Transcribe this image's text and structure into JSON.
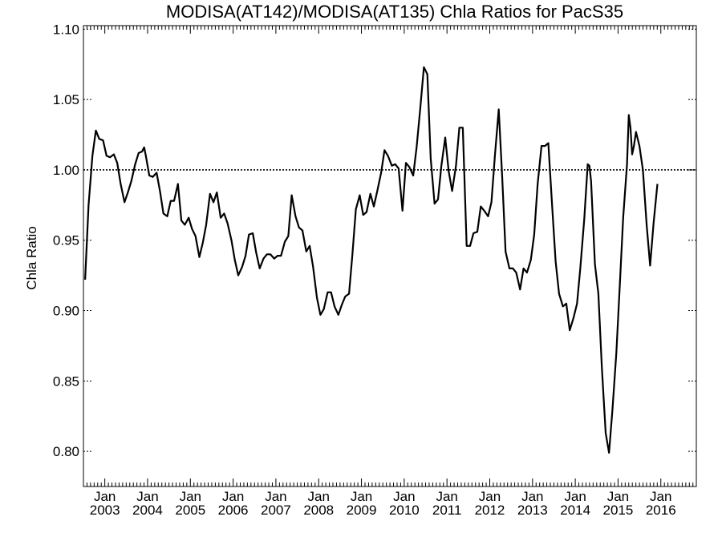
{
  "chart_data": {
    "type": "line",
    "title": "MODISA(AT142)/MODISA(AT135)  Chla Ratios for PacS35",
    "ylabel": "Chla Ratio",
    "xlabel": "",
    "ylim": [
      0.775,
      1.1025
    ],
    "xlim": [
      2002.5,
      2016.83
    ],
    "yticks": [
      0.8,
      0.85,
      0.9,
      0.95,
      1.0,
      1.05,
      1.1
    ],
    "ytick_labels": [
      "0.80",
      "0.85",
      "0.90",
      "0.95",
      "1.00",
      "1.05",
      "1.10"
    ],
    "xticks": [
      {
        "x": 2003.0,
        "month": "Jan",
        "year": "2003"
      },
      {
        "x": 2004.0,
        "month": "Jan",
        "year": "2004"
      },
      {
        "x": 2005.0,
        "month": "Jan",
        "year": "2005"
      },
      {
        "x": 2006.0,
        "month": "Jan",
        "year": "2006"
      },
      {
        "x": 2007.0,
        "month": "Jan",
        "year": "2007"
      },
      {
        "x": 2008.0,
        "month": "Jan",
        "year": "2008"
      },
      {
        "x": 2009.0,
        "month": "Jan",
        "year": "2009"
      },
      {
        "x": 2010.0,
        "month": "Jan",
        "year": "2010"
      },
      {
        "x": 2011.0,
        "month": "Jan",
        "year": "2011"
      },
      {
        "x": 2012.0,
        "month": "Jan",
        "year": "2012"
      },
      {
        "x": 2013.0,
        "month": "Jan",
        "year": "2013"
      },
      {
        "x": 2014.0,
        "month": "Jan",
        "year": "2014"
      },
      {
        "x": 2015.0,
        "month": "Jan",
        "year": "2015"
      },
      {
        "x": 2016.0,
        "month": "Jan",
        "year": "2016"
      }
    ],
    "reference_line": {
      "y": 1.0,
      "style": "dotted"
    },
    "grid": false,
    "legend": "none",
    "series": [
      {
        "values": [
          [
            2002.54,
            0.922
          ],
          [
            2002.62,
            0.975
          ],
          [
            2002.71,
            1.01
          ],
          [
            2002.79,
            1.028
          ],
          [
            2002.87,
            1.022
          ],
          [
            2002.96,
            1.021
          ],
          [
            2003.04,
            1.01
          ],
          [
            2003.12,
            1.009
          ],
          [
            2003.21,
            1.011
          ],
          [
            2003.29,
            1.005
          ],
          [
            2003.37,
            0.99
          ],
          [
            2003.46,
            0.977
          ],
          [
            2003.54,
            0.984
          ],
          [
            2003.62,
            0.992
          ],
          [
            2003.71,
            1.004
          ],
          [
            2003.79,
            1.012
          ],
          [
            2003.87,
            1.013
          ],
          [
            2003.92,
            1.016
          ],
          [
            2003.96,
            1.01
          ],
          [
            2004.04,
            0.996
          ],
          [
            2004.12,
            0.995
          ],
          [
            2004.21,
            0.998
          ],
          [
            2004.29,
            0.985
          ],
          [
            2004.37,
            0.969
          ],
          [
            2004.46,
            0.967
          ],
          [
            2004.54,
            0.978
          ],
          [
            2004.62,
            0.978
          ],
          [
            2004.71,
            0.99
          ],
          [
            2004.79,
            0.964
          ],
          [
            2004.87,
            0.961
          ],
          [
            2004.96,
            0.966
          ],
          [
            2005.04,
            0.958
          ],
          [
            2005.12,
            0.953
          ],
          [
            2005.21,
            0.938
          ],
          [
            2005.29,
            0.948
          ],
          [
            2005.37,
            0.961
          ],
          [
            2005.46,
            0.983
          ],
          [
            2005.54,
            0.977
          ],
          [
            2005.62,
            0.984
          ],
          [
            2005.71,
            0.966
          ],
          [
            2005.79,
            0.969
          ],
          [
            2005.87,
            0.962
          ],
          [
            2005.96,
            0.95
          ],
          [
            2006.04,
            0.936
          ],
          [
            2006.12,
            0.925
          ],
          [
            2006.21,
            0.931
          ],
          [
            2006.29,
            0.939
          ],
          [
            2006.37,
            0.954
          ],
          [
            2006.46,
            0.955
          ],
          [
            2006.54,
            0.941
          ],
          [
            2006.62,
            0.93
          ],
          [
            2006.71,
            0.937
          ],
          [
            2006.79,
            0.94
          ],
          [
            2006.87,
            0.94
          ],
          [
            2006.96,
            0.937
          ],
          [
            2007.04,
            0.939
          ],
          [
            2007.12,
            0.939
          ],
          [
            2007.21,
            0.949
          ],
          [
            2007.29,
            0.953
          ],
          [
            2007.37,
            0.982
          ],
          [
            2007.46,
            0.967
          ],
          [
            2007.54,
            0.959
          ],
          [
            2007.62,
            0.957
          ],
          [
            2007.71,
            0.942
          ],
          [
            2007.79,
            0.946
          ],
          [
            2007.87,
            0.931
          ],
          [
            2007.96,
            0.909
          ],
          [
            2008.04,
            0.897
          ],
          [
            2008.12,
            0.901
          ],
          [
            2008.21,
            0.913
          ],
          [
            2008.29,
            0.913
          ],
          [
            2008.37,
            0.903
          ],
          [
            2008.46,
            0.897
          ],
          [
            2008.54,
            0.904
          ],
          [
            2008.62,
            0.91
          ],
          [
            2008.71,
            0.912
          ],
          [
            2008.79,
            0.94
          ],
          [
            2008.87,
            0.972
          ],
          [
            2008.96,
            0.982
          ],
          [
            2009.04,
            0.968
          ],
          [
            2009.12,
            0.97
          ],
          [
            2009.21,
            0.983
          ],
          [
            2009.29,
            0.974
          ],
          [
            2009.37,
            0.985
          ],
          [
            2009.46,
            0.998
          ],
          [
            2009.54,
            1.014
          ],
          [
            2009.62,
            1.01
          ],
          [
            2009.71,
            1.003
          ],
          [
            2009.79,
            1.004
          ],
          [
            2009.87,
            1.001
          ],
          [
            2009.96,
            0.971
          ],
          [
            2010.04,
            1.005
          ],
          [
            2010.12,
            1.002
          ],
          [
            2010.21,
            0.996
          ],
          [
            2010.29,
            1.016
          ],
          [
            2010.37,
            1.042
          ],
          [
            2010.46,
            1.073
          ],
          [
            2010.54,
            1.068
          ],
          [
            2010.62,
            1.008
          ],
          [
            2010.71,
            0.976
          ],
          [
            2010.79,
            0.979
          ],
          [
            2010.87,
            1.003
          ],
          [
            2010.96,
            1.023
          ],
          [
            2011.04,
            0.999
          ],
          [
            2011.12,
            0.985
          ],
          [
            2011.21,
            1.003
          ],
          [
            2011.29,
            1.03
          ],
          [
            2011.37,
            1.03
          ],
          [
            2011.46,
            0.946
          ],
          [
            2011.54,
            0.946
          ],
          [
            2011.62,
            0.955
          ],
          [
            2011.71,
            0.956
          ],
          [
            2011.79,
            0.974
          ],
          [
            2011.87,
            0.971
          ],
          [
            2011.96,
            0.967
          ],
          [
            2012.04,
            0.977
          ],
          [
            2012.12,
            1.01
          ],
          [
            2012.21,
            1.043
          ],
          [
            2012.29,
            0.995
          ],
          [
            2012.37,
            0.942
          ],
          [
            2012.46,
            0.93
          ],
          [
            2012.54,
            0.93
          ],
          [
            2012.62,
            0.927
          ],
          [
            2012.71,
            0.915
          ],
          [
            2012.79,
            0.93
          ],
          [
            2012.87,
            0.927
          ],
          [
            2012.96,
            0.936
          ],
          [
            2013.04,
            0.954
          ],
          [
            2013.12,
            0.99
          ],
          [
            2013.21,
            1.017
          ],
          [
            2013.29,
            1.017
          ],
          [
            2013.37,
            1.019
          ],
          [
            2013.46,
            0.974
          ],
          [
            2013.54,
            0.935
          ],
          [
            2013.62,
            0.912
          ],
          [
            2013.71,
            0.903
          ],
          [
            2013.79,
            0.905
          ],
          [
            2013.87,
            0.886
          ],
          [
            2013.96,
            0.895
          ],
          [
            2014.04,
            0.905
          ],
          [
            2014.12,
            0.931
          ],
          [
            2014.21,
            0.965
          ],
          [
            2014.29,
            1.004
          ],
          [
            2014.33,
            1.003
          ],
          [
            2014.37,
            0.992
          ],
          [
            2014.46,
            0.933
          ],
          [
            2014.54,
            0.912
          ],
          [
            2014.62,
            0.86
          ],
          [
            2014.71,
            0.813
          ],
          [
            2014.79,
            0.799
          ],
          [
            2014.87,
            0.83
          ],
          [
            2014.96,
            0.87
          ],
          [
            2015.04,
            0.918
          ],
          [
            2015.12,
            0.966
          ],
          [
            2015.21,
            1.004
          ],
          [
            2015.25,
            1.039
          ],
          [
            2015.29,
            1.03
          ],
          [
            2015.33,
            1.011
          ],
          [
            2015.37,
            1.017
          ],
          [
            2015.42,
            1.027
          ],
          [
            2015.5,
            1.017
          ],
          [
            2015.58,
            1.0
          ],
          [
            2015.67,
            0.96
          ],
          [
            2015.75,
            0.932
          ],
          [
            2015.83,
            0.962
          ],
          [
            2015.92,
            0.99
          ]
        ]
      }
    ]
  }
}
